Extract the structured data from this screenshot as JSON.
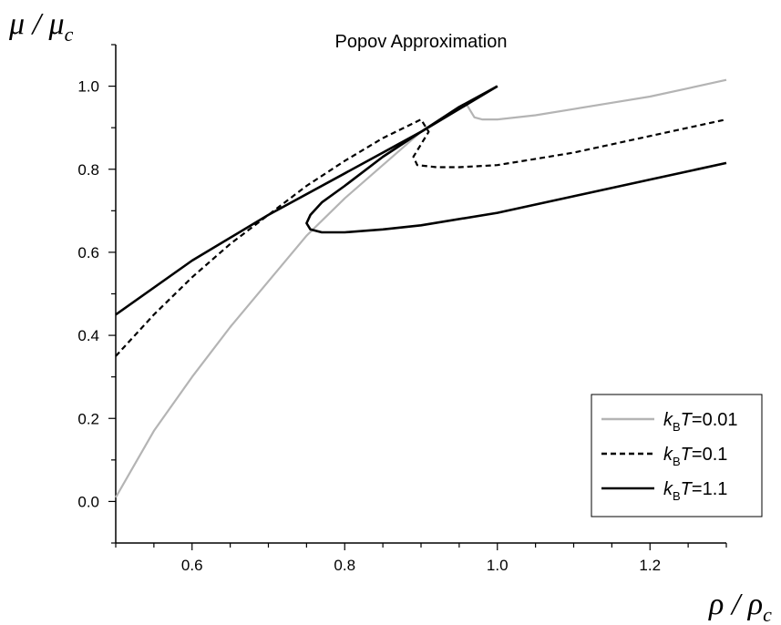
{
  "chart_data": {
    "type": "line",
    "title": "Popov Approximation",
    "xlabel": {
      "main": "ρ / ρ",
      "sub": "c"
    },
    "ylabel": {
      "main": "μ / μ",
      "sub": "c"
    },
    "xlim": [
      0.5,
      1.3
    ],
    "ylim": [
      -0.1,
      1.1
    ],
    "x_ticks": [
      "0.6",
      "0.8",
      "1.0",
      "1.2"
    ],
    "y_ticks": [
      "0.0",
      "0.2",
      "0.4",
      "0.6",
      "0.8",
      "1.0"
    ],
    "grid": false,
    "legend_position": "bottom-right",
    "series": [
      {
        "name": {
          "pre": "k",
          "sub": "B",
          "post": "T=0.01"
        },
        "color": "#b4b4b4",
        "dash": "solid",
        "x": [
          0.5,
          0.55,
          0.6,
          0.65,
          0.7,
          0.75,
          0.8,
          0.85,
          0.9,
          0.94,
          0.96,
          0.965,
          0.97,
          0.98,
          1.0,
          1.05,
          1.1,
          1.15,
          1.2,
          1.25,
          1.3
        ],
        "y": [
          0.01,
          0.17,
          0.3,
          0.42,
          0.53,
          0.64,
          0.73,
          0.81,
          0.89,
          0.935,
          0.955,
          0.94,
          0.925,
          0.92,
          0.92,
          0.93,
          0.945,
          0.96,
          0.975,
          0.995,
          1.015
        ]
      },
      {
        "name": {
          "pre": "k",
          "sub": "B",
          "post": "T=0.1"
        },
        "color": "#000000",
        "dash": "dashed",
        "x": [
          0.5,
          0.55,
          0.6,
          0.65,
          0.7,
          0.75,
          0.8,
          0.85,
          0.9,
          0.91,
          0.9,
          0.89,
          0.895,
          0.92,
          0.95,
          1.0,
          1.05,
          1.1,
          1.15,
          1.2,
          1.25,
          1.3
        ],
        "y": [
          0.35,
          0.45,
          0.54,
          0.62,
          0.69,
          0.76,
          0.82,
          0.875,
          0.92,
          0.89,
          0.86,
          0.83,
          0.81,
          0.805,
          0.805,
          0.81,
          0.825,
          0.84,
          0.86,
          0.88,
          0.9,
          0.92
        ]
      },
      {
        "name": {
          "pre": "k",
          "sub": "B",
          "post": "T=1.1"
        },
        "color": "#000000",
        "dash": "solid",
        "x": [
          1.0,
          0.95,
          0.9,
          0.85,
          0.8,
          0.77,
          0.755,
          0.75,
          0.755,
          0.77,
          0.8,
          0.85,
          0.9,
          1.0,
          1.1,
          1.2,
          1.3
        ],
        "y": [
          1.0,
          0.95,
          0.89,
          0.83,
          0.76,
          0.72,
          0.69,
          0.67,
          0.655,
          0.648,
          0.648,
          0.655,
          0.665,
          0.695,
          0.735,
          0.775,
          0.815
        ],
        "extra_segment": {
          "x": [
            0.5,
            0.6,
            0.7,
            0.8,
            0.9,
            1.0
          ],
          "y": [
            0.45,
            0.58,
            0.69,
            0.79,
            0.89,
            1.0
          ]
        }
      }
    ]
  }
}
